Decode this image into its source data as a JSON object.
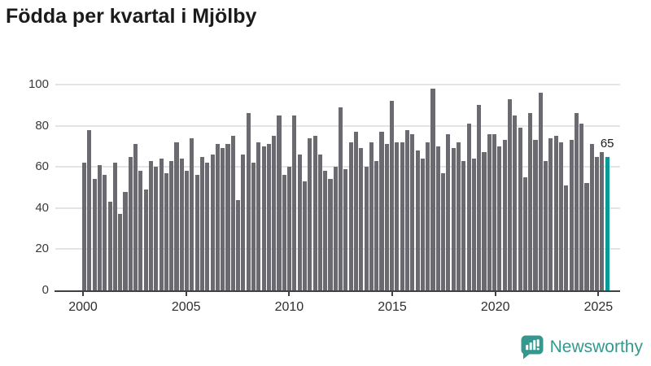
{
  "chart_data": {
    "type": "bar",
    "title": "Födda per kvartal i Mjölby",
    "frequency": "quarterly",
    "x_start_year": 2000,
    "x_tick_labels": [
      "2000",
      "2005",
      "2010",
      "2015",
      "2020",
      "2025"
    ],
    "y_tick_values": [
      0,
      20,
      40,
      60,
      80,
      100
    ],
    "ylim": [
      0,
      100
    ],
    "grid": "horizontal",
    "legend": "none",
    "bar_color": "#6b6a70",
    "highlight_color": "#0a9a96",
    "highlight_index": 102,
    "highlight_label": "65",
    "values": [
      62,
      78,
      54,
      61,
      56,
      43,
      62,
      37,
      48,
      65,
      71,
      58,
      49,
      63,
      60,
      64,
      57,
      63,
      72,
      64,
      58,
      74,
      56,
      65,
      62,
      66,
      71,
      69,
      71,
      75,
      44,
      66,
      86,
      62,
      72,
      70,
      71,
      75,
      85,
      56,
      60,
      85,
      66,
      53,
      74,
      75,
      66,
      58,
      54,
      60,
      89,
      59,
      72,
      77,
      69,
      60,
      72,
      63,
      77,
      71,
      92,
      72,
      72,
      78,
      76,
      68,
      64,
      72,
      98,
      70,
      57,
      76,
      69,
      72,
      63,
      81,
      64,
      90,
      67,
      76,
      76,
      70,
      73,
      93,
      85,
      79,
      55,
      86,
      73,
      96,
      63,
      74,
      75,
      72,
      51,
      73,
      86,
      81,
      52,
      71,
      65,
      67,
      65
    ]
  },
  "branding": {
    "logo_text": "Newsworthy",
    "logo_color": "#35988f"
  }
}
